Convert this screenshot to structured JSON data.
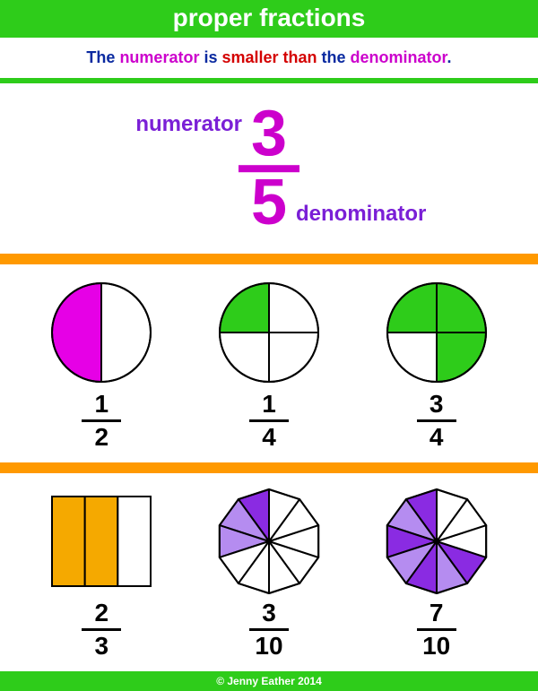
{
  "colors": {
    "green_bar": "#2ecc1a",
    "green_thin": "#2ecc1a",
    "orange_bar": "#ff9900",
    "title_text": "#ffffff",
    "subtitle_base": "#0a2aa0",
    "numerator_word": "#cc00cc",
    "smaller_word": "#d40000",
    "hero_fraction": "#cc00cc",
    "hero_labels": "#7a1fd6",
    "footer_text": "#ffffff",
    "stroke": "#000000",
    "magenta_fill": "#e600e6",
    "green_fill": "#2ecc1a",
    "orange_fill": "#f5a900",
    "purple_dark": "#8a2be2",
    "purple_light": "#b58cf0",
    "white": "#ffffff"
  },
  "title": "proper fractions",
  "subtitle": {
    "pre": "The ",
    "numerator": "numerator",
    "mid1": " is ",
    "smaller": "smaller than",
    "mid2": " the ",
    "denominator": "denominator",
    "post": "."
  },
  "hero": {
    "numerator": "3",
    "denominator": "5",
    "label_numerator": "numerator",
    "label_denominator": "denominator"
  },
  "row1": [
    {
      "type": "pie",
      "segments": 2,
      "filled": [
        0
      ],
      "fill_color": "#e600e6",
      "numerator": "1",
      "denominator": "2"
    },
    {
      "type": "pie",
      "segments": 4,
      "filled": [
        0
      ],
      "fill_color": "#2ecc1a",
      "numerator": "1",
      "denominator": "4"
    },
    {
      "type": "pie",
      "segments": 4,
      "filled": [
        0,
        2,
        3
      ],
      "fill_color": "#2ecc1a",
      "numerator": "3",
      "denominator": "4"
    }
  ],
  "row2": [
    {
      "type": "rect3",
      "filled": [
        0,
        1
      ],
      "fill_color": "#f5a900",
      "numerator": "2",
      "denominator": "3"
    },
    {
      "type": "decagon",
      "segments": 10,
      "filled_colors": [
        "#8a2be2",
        "#b58cf0",
        "#b58cf0",
        "",
        "",
        "",
        "",
        "",
        "",
        ""
      ],
      "numerator": "3",
      "denominator": "10"
    },
    {
      "type": "decagon",
      "segments": 10,
      "filled_colors": [
        "#8a2be2",
        "#b58cf0",
        "#8a2be2",
        "#b58cf0",
        "#8a2be2",
        "#b58cf0",
        "#8a2be2",
        "",
        "",
        ""
      ],
      "numerator": "7",
      "denominator": "10"
    }
  ],
  "footer": "© Jenny Eather 2014",
  "style": {
    "circle_radius": 55,
    "stroke_width": 2,
    "decagon_radius": 58
  }
}
